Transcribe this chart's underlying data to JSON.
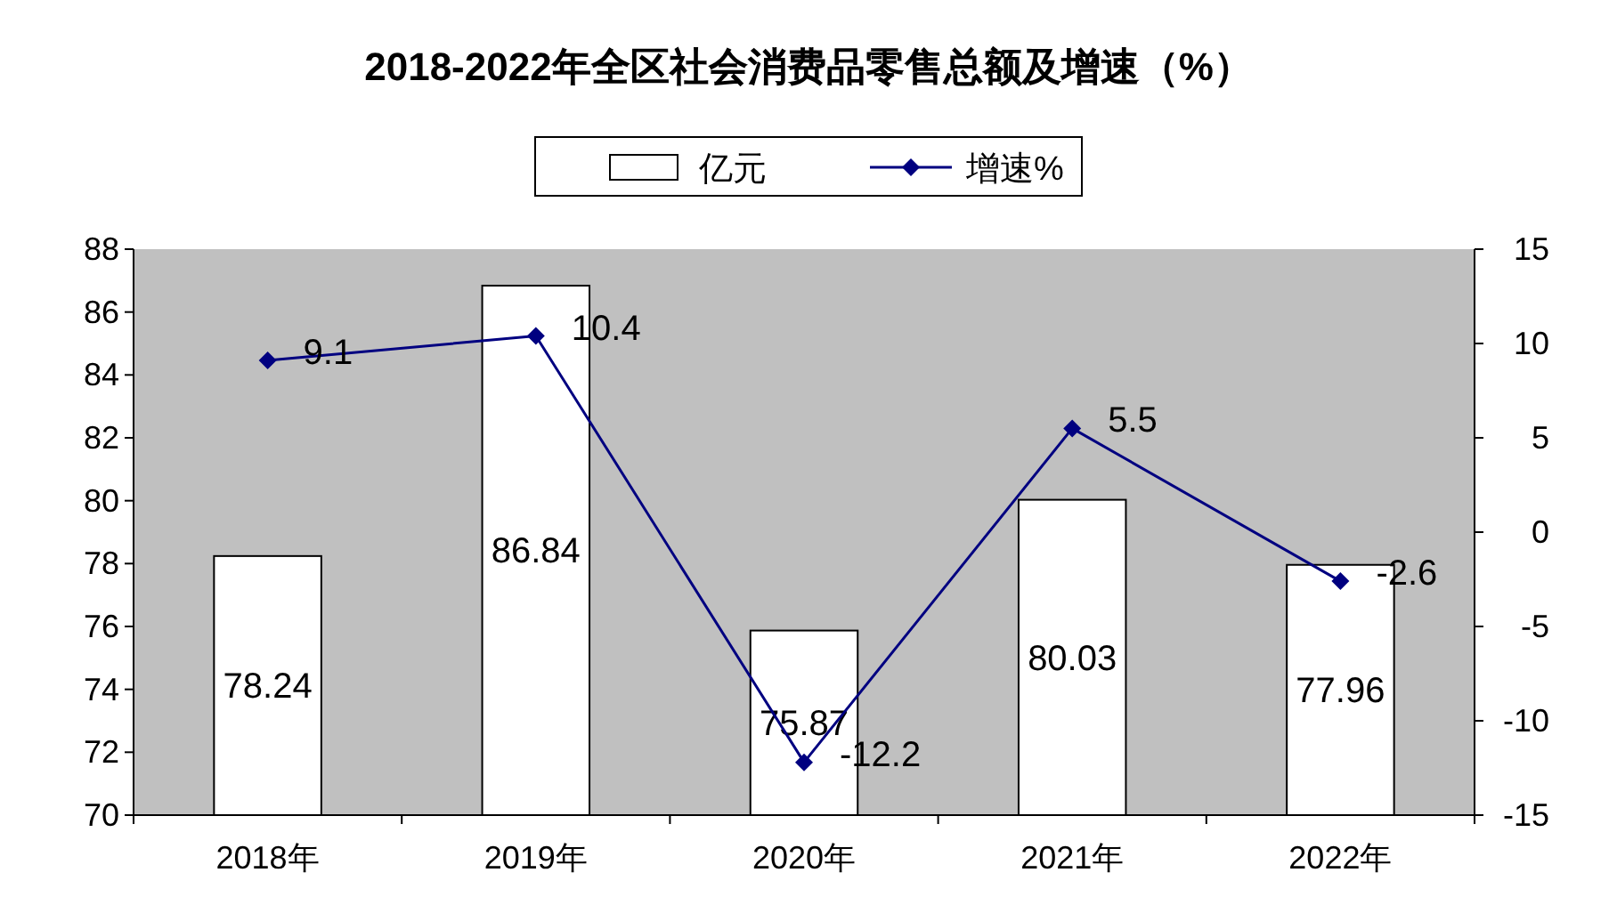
{
  "chart_data": {
    "type": "bar",
    "title": "2018-2022年全区社会消费品零售总额及增速（%）",
    "categories": [
      "2018年",
      "2019年",
      "2020年",
      "2021年",
      "2022年"
    ],
    "series": [
      {
        "name": "亿元",
        "color": "#ffffff",
        "values": [
          78.24,
          86.84,
          75.87,
          80.03,
          77.96
        ]
      },
      {
        "name": "增速%",
        "type": "line",
        "axis": "y2",
        "color": "#000080",
        "marker": "diamond",
        "values": [
          9.1,
          10.4,
          -12.2,
          5.5,
          -2.6
        ]
      }
    ],
    "ylim": [
      70,
      88
    ],
    "yticks": [
      70,
      72,
      74,
      76,
      78,
      80,
      82,
      84,
      86,
      88
    ],
    "y2lim": [
      -15,
      15
    ],
    "y2ticks": [
      -15,
      -10,
      -5,
      0,
      5,
      10,
      15
    ],
    "data_labels": true,
    "legend": "top",
    "grid": false
  }
}
